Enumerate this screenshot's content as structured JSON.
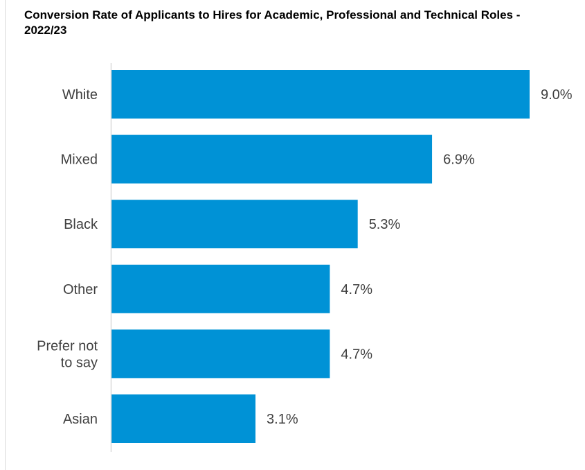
{
  "chart_data": {
    "type": "bar",
    "orientation": "horizontal",
    "title": "Conversion Rate of Applicants to Hires for Academic, Professional and Technical Roles - 2022/23",
    "categories": [
      "White",
      "Mixed",
      "Black",
      "Other",
      "Prefer not to say",
      "Asian"
    ],
    "category_lines": [
      [
        "White"
      ],
      [
        "Mixed"
      ],
      [
        "Black"
      ],
      [
        "Other"
      ],
      [
        "Prefer not",
        "to say"
      ],
      [
        "Asian"
      ]
    ],
    "values": [
      9.0,
      6.9,
      5.3,
      4.7,
      4.7,
      3.1
    ],
    "value_labels": [
      "9.0%",
      "6.9%",
      "5.3%",
      "4.7%",
      "4.7%",
      "3.1%"
    ],
    "xlim": [
      0,
      9.0
    ],
    "grid": false,
    "legend": "none",
    "bar_color": "#0092D6",
    "axis_color": "#d9d9d9",
    "text_color": "#404040"
  }
}
